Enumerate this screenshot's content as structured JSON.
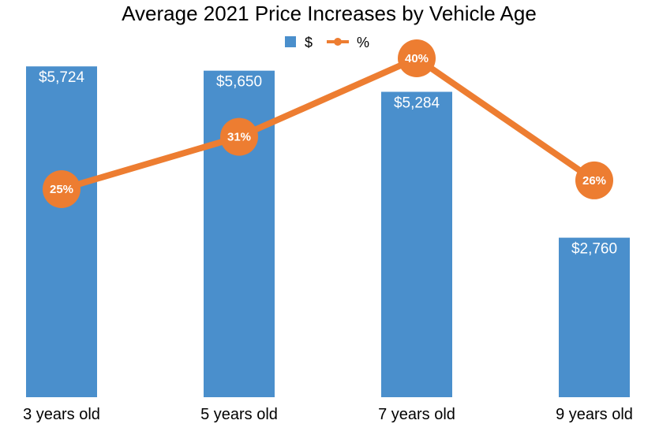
{
  "chart_data": {
    "type": "bar",
    "title": "Average 2021 Price Increases by Vehicle Age",
    "categories": [
      "3 years old",
      "5 years old",
      "7 years old",
      "9 years old"
    ],
    "series": [
      {
        "name": "$",
        "type": "bar",
        "color": "#4A8FCC",
        "values": [
          5724,
          5650,
          5284,
          2760
        ],
        "labels": [
          "$5,724",
          "$5,650",
          "$5,284",
          "$2,760"
        ]
      },
      {
        "name": "%",
        "type": "line",
        "color": "#ED7D31",
        "values": [
          25,
          31,
          40,
          26
        ],
        "labels": [
          "25%",
          "31%",
          "40%",
          "26%"
        ]
      }
    ],
    "ylim": [
      0,
      6000
    ],
    "y2lim": [
      0,
      42
    ],
    "grid": false,
    "legend_position": "top"
  }
}
